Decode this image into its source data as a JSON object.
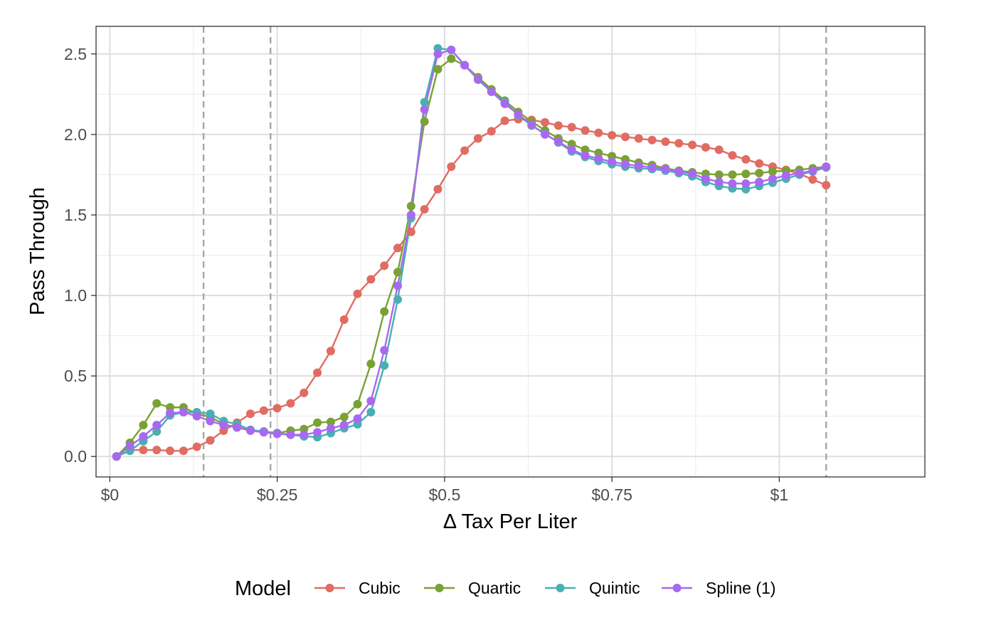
{
  "chart_data": {
    "type": "line",
    "xlabel": "Δ Tax Per Liter",
    "ylabel": "Pass Through",
    "xlim": [
      -0.0206,
      1.2175
    ],
    "ylim": [
      -0.1272,
      2.6714
    ],
    "x_ticks": [
      {
        "value": 0,
        "label": "$0"
      },
      {
        "value": 0.25,
        "label": "$0.25"
      },
      {
        "value": 0.5,
        "label": "$0.5"
      },
      {
        "value": 0.75,
        "label": "$0.75"
      },
      {
        "value": 1,
        "label": "$1"
      }
    ],
    "y_ticks": [
      {
        "value": 0,
        "label": "0.0"
      },
      {
        "value": 0.5,
        "label": "0.5"
      },
      {
        "value": 1,
        "label": "1.0"
      },
      {
        "value": 1.5,
        "label": "1.5"
      },
      {
        "value": 2,
        "label": "2.0"
      },
      {
        "value": 2.5,
        "label": "2.5"
      }
    ],
    "grid": true,
    "vlines": [
      0.14,
      0.24,
      1.07
    ],
    "legend": {
      "title": "Model",
      "position": "bottom"
    },
    "x": [
      0.01,
      0.03,
      0.05,
      0.07,
      0.09,
      0.11,
      0.13,
      0.15,
      0.17,
      0.19,
      0.21,
      0.23,
      0.25,
      0.27,
      0.29,
      0.31,
      0.33,
      0.35,
      0.37,
      0.39,
      0.41,
      0.43,
      0.45,
      0.47,
      0.49,
      0.51,
      0.53,
      0.55,
      0.57,
      0.59,
      0.61,
      0.63,
      0.65,
      0.67,
      0.69,
      0.71,
      0.73,
      0.75,
      0.77,
      0.79,
      0.81,
      0.83,
      0.85,
      0.87,
      0.89,
      0.91,
      0.93,
      0.95,
      0.97,
      0.99,
      1.01,
      1.03,
      1.05,
      1.07
    ],
    "series": [
      {
        "name": "Cubic",
        "color": "#e06c62",
        "values": [
          0.0,
          0.04,
          0.04,
          0.04,
          0.035,
          0.035,
          0.06,
          0.1,
          0.16,
          0.21,
          0.265,
          0.285,
          0.3,
          0.33,
          0.395,
          0.52,
          0.655,
          0.85,
          1.01,
          1.1,
          1.185,
          1.295,
          1.395,
          1.535,
          1.66,
          1.8,
          1.9,
          1.975,
          2.02,
          2.085,
          2.095,
          2.09,
          2.075,
          2.055,
          2.045,
          2.025,
          2.01,
          1.995,
          1.985,
          1.975,
          1.965,
          1.955,
          1.945,
          1.935,
          1.92,
          1.905,
          1.87,
          1.845,
          1.82,
          1.8,
          1.78,
          1.755,
          1.72,
          1.685
        ]
      },
      {
        "name": "Quartic",
        "color": "#7aa134",
        "values": [
          0.0,
          0.085,
          0.195,
          0.33,
          0.305,
          0.305,
          0.265,
          0.245,
          0.2,
          0.18,
          0.165,
          0.155,
          0.145,
          0.16,
          0.17,
          0.21,
          0.215,
          0.245,
          0.325,
          0.575,
          0.9,
          1.145,
          1.555,
          2.08,
          2.405,
          2.47,
          2.43,
          2.355,
          2.28,
          2.21,
          2.14,
          2.08,
          2.025,
          1.975,
          1.94,
          1.905,
          1.885,
          1.865,
          1.845,
          1.825,
          1.81,
          1.79,
          1.775,
          1.765,
          1.755,
          1.75,
          1.75,
          1.755,
          1.76,
          1.77,
          1.775,
          1.78,
          1.79,
          1.8
        ]
      },
      {
        "name": "Quintic",
        "color": "#48b0b2",
        "values": [
          0.0,
          0.035,
          0.095,
          0.155,
          0.255,
          0.275,
          0.275,
          0.265,
          0.22,
          0.2,
          0.165,
          0.155,
          0.145,
          0.135,
          0.125,
          0.12,
          0.145,
          0.175,
          0.2,
          0.275,
          0.565,
          0.975,
          1.48,
          2.2,
          2.535,
          2.525,
          2.43,
          2.34,
          2.265,
          2.2,
          2.12,
          2.055,
          2.005,
          1.95,
          1.895,
          1.86,
          1.835,
          1.815,
          1.8,
          1.79,
          1.785,
          1.775,
          1.76,
          1.74,
          1.705,
          1.68,
          1.665,
          1.66,
          1.68,
          1.7,
          1.725,
          1.75,
          1.77,
          1.795
        ]
      },
      {
        "name": "Spline (1)",
        "color": "#a869f0",
        "values": [
          0.0,
          0.065,
          0.125,
          0.195,
          0.27,
          0.275,
          0.25,
          0.22,
          0.195,
          0.18,
          0.16,
          0.15,
          0.14,
          0.135,
          0.135,
          0.15,
          0.175,
          0.195,
          0.235,
          0.345,
          0.66,
          1.06,
          1.5,
          2.155,
          2.5,
          2.525,
          2.43,
          2.345,
          2.265,
          2.19,
          2.125,
          2.06,
          2.0,
          1.955,
          1.905,
          1.87,
          1.85,
          1.83,
          1.815,
          1.805,
          1.795,
          1.785,
          1.77,
          1.755,
          1.725,
          1.705,
          1.695,
          1.695,
          1.705,
          1.725,
          1.745,
          1.76,
          1.775,
          1.8
        ]
      }
    ]
  }
}
